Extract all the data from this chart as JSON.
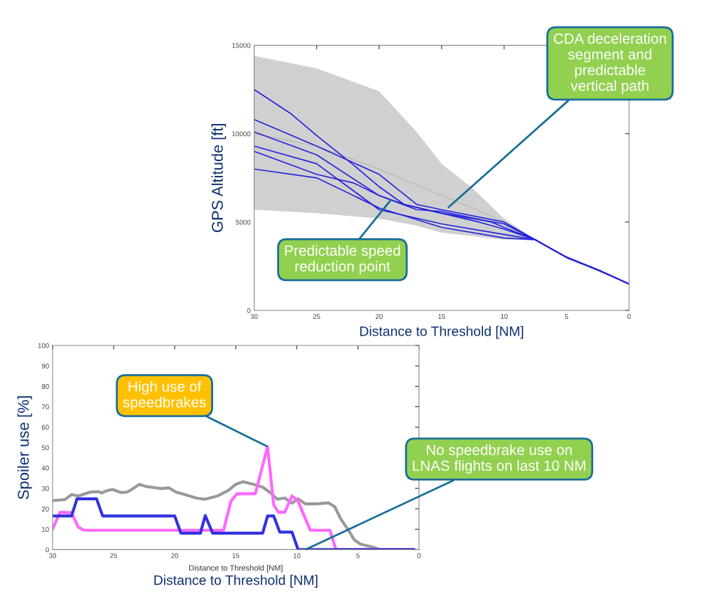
{
  "chart_data": [
    {
      "type": "line",
      "xlabel": "Distance to Threshold [NM]",
      "ylabel": "GPS Altitude [ft]",
      "xlim": [
        30,
        0
      ],
      "ylim": [
        0,
        15000
      ],
      "xticks": [
        30,
        25,
        20,
        15,
        10,
        5,
        0
      ],
      "yticks": [
        0,
        5000,
        10000,
        15000
      ],
      "series": [
        {
          "color": "#aaaaaa",
          "x": [
            30,
            25,
            20,
            17,
            15,
            12.5,
            10,
            7.5,
            5,
            2.5,
            0
          ],
          "values": [
            10000,
            9300,
            8000,
            7100,
            6500,
            5800,
            5000,
            4000,
            3000,
            2250,
            1500
          ],
          "lower": [
            5700,
            5500,
            5200,
            4800,
            4400,
            4200,
            4000,
            4000,
            2950,
            2200,
            1500
          ],
          "upper": [
            14400,
            13700,
            12400,
            10100,
            8300,
            6900,
            5200,
            4000,
            3100,
            2300,
            1500
          ]
        },
        {
          "color": "#2222dd",
          "x": [
            30,
            27,
            25,
            22,
            20,
            18,
            15,
            12,
            10,
            7.5,
            5,
            2.5,
            0
          ],
          "values": [
            12500,
            11100,
            9900,
            8200,
            7000,
            6000,
            5500,
            5000,
            4600,
            4000,
            3000,
            2300,
            1500
          ]
        },
        {
          "color": "#2222dd",
          "x": [
            30,
            25,
            20,
            17,
            15,
            10,
            7.5,
            5,
            2.5,
            0
          ],
          "values": [
            10800,
            9300,
            7700,
            6000,
            5700,
            5000,
            4000,
            3000,
            2300,
            1500
          ]
        },
        {
          "color": "#2222dd",
          "x": [
            30,
            25,
            20,
            18,
            15,
            12.5,
            10,
            7.5,
            5,
            2.5,
            0
          ],
          "values": [
            10100,
            8800,
            6500,
            6000,
            5500,
            5200,
            4900,
            4000,
            3000,
            2300,
            1500
          ]
        },
        {
          "color": "#2222dd",
          "x": [
            30,
            25,
            20,
            15,
            10,
            7.5,
            5,
            2.5,
            0
          ],
          "values": [
            9300,
            8300,
            5700,
            4900,
            4300,
            4000,
            3000,
            2300,
            1500
          ]
        },
        {
          "color": "#2222dd",
          "x": [
            30,
            25,
            20,
            15,
            10,
            7.5,
            5,
            2.5,
            0
          ],
          "values": [
            8000,
            7500,
            5800,
            4700,
            4100,
            4000,
            3000,
            2300,
            1500
          ]
        },
        {
          "color": "#2222dd",
          "x": [
            30,
            25,
            22,
            20,
            17,
            15,
            11,
            10,
            7.5,
            5,
            2.5,
            0
          ],
          "values": [
            9000,
            7700,
            7200,
            6500,
            5700,
            5600,
            5000,
            4700,
            4000,
            3000,
            2300,
            1500
          ]
        }
      ],
      "annotations": [
        {
          "text": "CDA deceleration\nsegment and\npredictable\nvertical path",
          "x": 14.5,
          "y": 5800
        },
        {
          "text": "Predictable speed\nreduction point",
          "x": 19,
          "y": 6300
        }
      ]
    },
    {
      "type": "line",
      "xlabel": "Distance to Threshold [NM]",
      "ylabel": "Spoiler use [%]",
      "xlim": [
        30,
        0
      ],
      "ylim": [
        0,
        100
      ],
      "xticks": [
        30,
        25,
        20,
        15,
        10,
        5,
        0
      ],
      "yticks": [
        0,
        10,
        20,
        30,
        40,
        50,
        60,
        70,
        80,
        90,
        100
      ],
      "series": [
        {
          "color": "#999999",
          "x": [
            30,
            29,
            28.45,
            27.9,
            26.9,
            26.2,
            26.0,
            25.6,
            25.1,
            24.4,
            23.9,
            23.5,
            22.9,
            22.4,
            21.1,
            20.5,
            19.9,
            18.8,
            18.2,
            17.5,
            16.5,
            15.6,
            15.0,
            14.4,
            13.4,
            12.8,
            12.2,
            11.6,
            11.0,
            10.4,
            9.9,
            9.3,
            8.4,
            7.4,
            6.9,
            6.4,
            5.8,
            5.3,
            4.8,
            3.7,
            3.3,
            0.4
          ],
          "values": [
            24,
            24.5,
            27,
            26.3,
            28.2,
            28.4,
            27.7,
            28.8,
            29.5,
            28,
            28.2,
            29.6,
            32,
            31,
            29.9,
            30.3,
            28.2,
            26.3,
            25.2,
            24.7,
            26.3,
            29,
            32,
            33.3,
            31.7,
            30.6,
            28,
            24.7,
            25.3,
            22.8,
            24.9,
            22.4,
            22.4,
            22.9,
            21,
            15,
            9.7,
            4.8,
            2.7,
            1.1,
            0.2,
            0
          ]
        },
        {
          "color": "#ff66ff",
          "x": [
            30,
            29.4,
            28.45,
            27.9,
            27.4,
            16.0,
            15.4,
            14.9,
            13.4,
            12.4,
            11.9,
            11.5,
            11.0,
            10.4,
            9.9,
            8.9,
            7.3,
            6.8,
            0.4
          ],
          "values": [
            10,
            18.3,
            18.1,
            11,
            9.5,
            9.5,
            23.7,
            27.4,
            27.4,
            50.5,
            22,
            18.3,
            18.3,
            26.3,
            23.7,
            9.5,
            9.5,
            0,
            0
          ]
        },
        {
          "color": "#3333dd",
          "x": [
            30,
            28.45,
            28.0,
            26.4,
            25.9,
            20.0,
            19.5,
            17.9,
            17.5,
            16.9,
            12.8,
            12.4,
            11.9,
            11.4,
            10.4,
            9.9,
            0.4
          ],
          "values": [
            16.5,
            16.5,
            24.9,
            24.9,
            16.5,
            16.5,
            8.1,
            8.1,
            16.7,
            8.1,
            8.1,
            16.5,
            16.5,
            8.6,
            8.6,
            0,
            0
          ]
        }
      ],
      "annotations": [
        {
          "text": "High use of\nspeedbrakes",
          "x": 12.4,
          "y": 50.5
        },
        {
          "text": "No speedbrake use on\nLNAS flights on last 10 NM",
          "x": 9.3,
          "y": 0
        },
        "Distance to Threshold [NM]"
      ]
    }
  ]
}
